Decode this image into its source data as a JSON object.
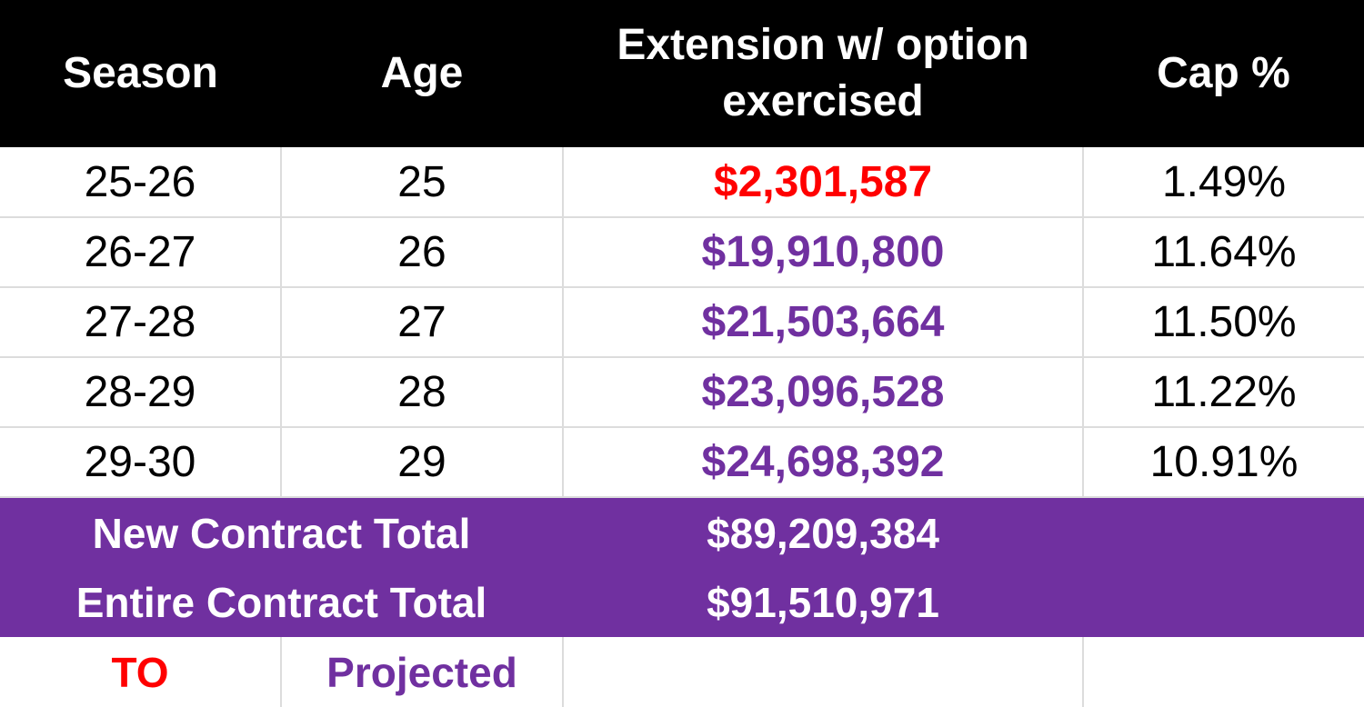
{
  "colors": {
    "header_bg": "#000000",
    "total_bg": "#7030a0",
    "team_option": "#ff0000",
    "projected": "#7030a0"
  },
  "headers": {
    "season": "Season",
    "age": "Age",
    "extension_line1": "Extension w/ option",
    "extension_line2": "exercised",
    "cap_pct": "Cap %"
  },
  "rows": [
    {
      "season": "25-26",
      "age": "25",
      "amount": "$2,301,587",
      "cap": "1.49%",
      "status": "TO"
    },
    {
      "season": "26-27",
      "age": "26",
      "amount": "$19,910,800",
      "cap": "11.64%",
      "status": "Projected"
    },
    {
      "season": "27-28",
      "age": "27",
      "amount": "$21,503,664",
      "cap": "11.50%",
      "status": "Projected"
    },
    {
      "season": "28-29",
      "age": "28",
      "amount": "$23,096,528",
      "cap": "11.22%",
      "status": "Projected"
    },
    {
      "season": "29-30",
      "age": "29",
      "amount": "$24,698,392",
      "cap": "10.91%",
      "status": "Projected"
    }
  ],
  "totals": {
    "new_label": "New Contract Total",
    "new_value": "$89,209,384",
    "entire_label": "Entire Contract Total",
    "entire_value": "$91,510,971"
  },
  "legend": {
    "to_label": "TO",
    "projected_label": "Projected"
  }
}
